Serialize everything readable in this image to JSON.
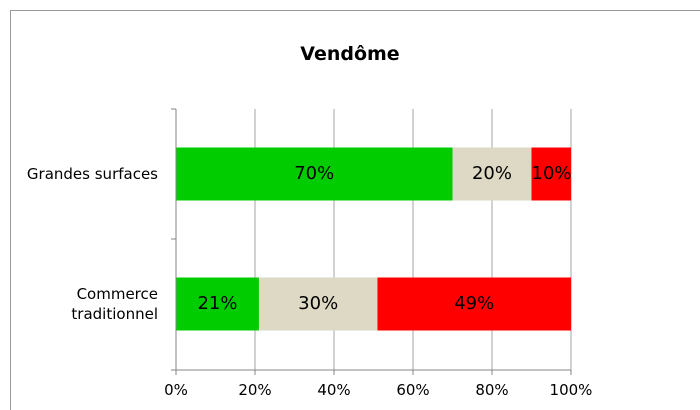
{
  "chart_data": {
    "type": "bar",
    "orientation": "horizontal",
    "stacked": "percent",
    "title": "Vendôme",
    "categories": [
      "Grandes surfaces",
      "Commerce traditionnel"
    ],
    "category_lines": [
      [
        "Grandes surfaces"
      ],
      [
        "Commerce",
        "traditionnel"
      ]
    ],
    "series": [
      {
        "color": "#00cc00",
        "values": [
          70,
          21
        ]
      },
      {
        "color": "#ddd9c4",
        "values": [
          20,
          30
        ]
      },
      {
        "color": "#ff0000",
        "values": [
          10,
          49
        ]
      }
    ],
    "xlim": [
      0,
      100
    ],
    "x_ticks": [
      "0%",
      "20%",
      "40%",
      "60%",
      "80%",
      "100%"
    ],
    "data_labels": [
      [
        "70%",
        "20%",
        "10%"
      ],
      [
        "21%",
        "30%",
        "49%"
      ]
    ],
    "grid": true,
    "legend": "none"
  }
}
